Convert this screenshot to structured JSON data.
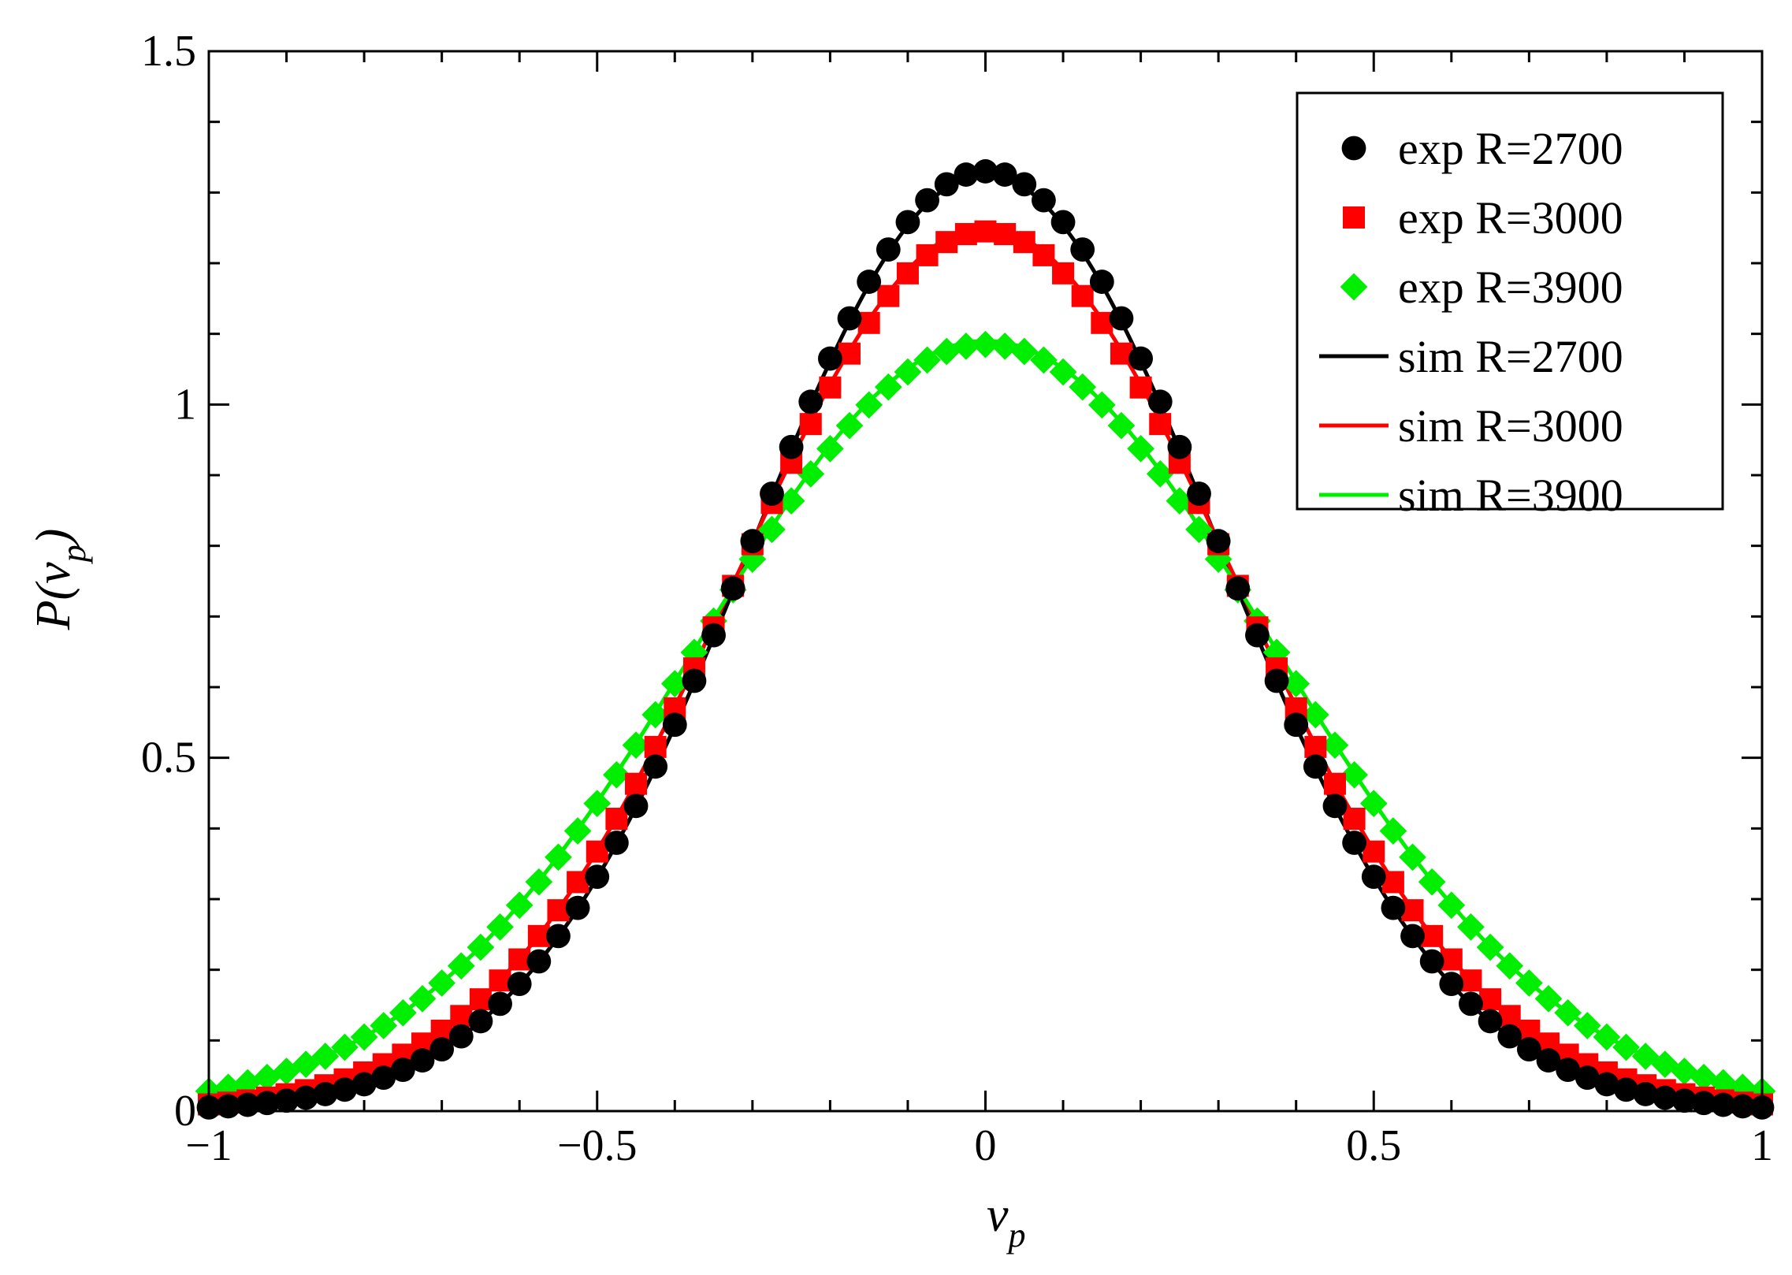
{
  "chart_data": {
    "type": "scatter",
    "title": "",
    "xlabel": "v_p",
    "ylabel": "P(v_p)",
    "xlim": [
      -1,
      1
    ],
    "ylim": [
      0,
      1.5
    ],
    "x_ticks": [
      -1,
      -0.5,
      0,
      0.5,
      1
    ],
    "x_tick_labels": [
      "−1",
      "−0.5",
      "0",
      "0.5",
      "1"
    ],
    "y_ticks": [
      0,
      0.5,
      1,
      1.5
    ],
    "y_tick_labels": [
      "0",
      "0.5",
      "1",
      "1.5"
    ],
    "legend_position": "top-right",
    "series": [
      {
        "name": "exp R=2700",
        "kind": "points",
        "marker": "circle",
        "color": "#000000",
        "sigma": 0.3,
        "peak": 1.33
      },
      {
        "name": "exp R=3000",
        "kind": "points",
        "marker": "square",
        "color": "#ff0000",
        "sigma": 0.32,
        "peak": 1.245
      },
      {
        "name": "exp R=3900",
        "kind": "points",
        "marker": "diamond",
        "color": "#00ee00",
        "sigma": 0.37,
        "peak": 1.085
      },
      {
        "name": "sim R=2700",
        "kind": "line",
        "color": "#000000",
        "sigma": 0.3,
        "peak": 1.325
      },
      {
        "name": "sim R=3000",
        "kind": "line",
        "color": "#ff0000",
        "sigma": 0.32,
        "peak": 1.25
      },
      {
        "name": "sim R=3900",
        "kind": "line",
        "color": "#00ee00",
        "sigma": 0.37,
        "peak": 1.09
      }
    ]
  }
}
